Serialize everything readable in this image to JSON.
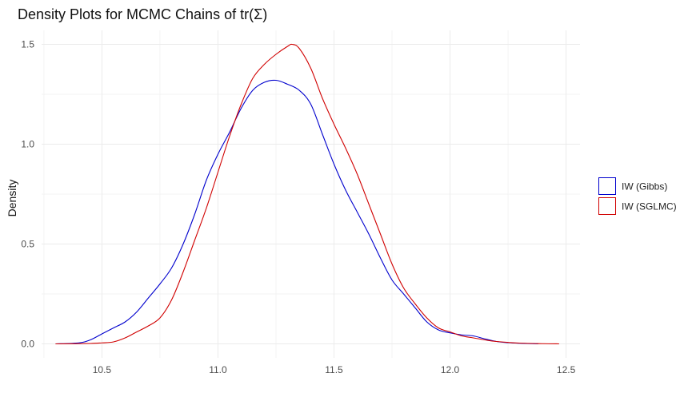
{
  "chart_data": {
    "type": "line",
    "title": "Density Plots for MCMC Chains of tr(Σ)",
    "xlabel": "",
    "ylabel": "Density",
    "xlim": [
      10.24,
      12.56
    ],
    "ylim": [
      -0.07,
      1.57
    ],
    "x_ticks": [
      "10.5",
      "11.0",
      "11.5",
      "12.0",
      "12.5"
    ],
    "x_tick_values": [
      10.5,
      11.0,
      11.5,
      12.0,
      12.5
    ],
    "y_ticks": [
      "0.0",
      "0.5",
      "1.0",
      "1.5"
    ],
    "y_tick_values": [
      0.0,
      0.5,
      1.0,
      1.5
    ],
    "grid": true,
    "legend_position": "right",
    "series": [
      {
        "name": "IW (Gibbs)",
        "color": "#0000cd",
        "x": [
          10.3,
          10.4,
          10.45,
          10.5,
          10.55,
          10.6,
          10.65,
          10.7,
          10.75,
          10.8,
          10.85,
          10.9,
          10.95,
          11.0,
          11.05,
          11.1,
          11.15,
          11.2,
          11.25,
          11.3,
          11.35,
          11.4,
          11.45,
          11.5,
          11.55,
          11.6,
          11.65,
          11.7,
          11.75,
          11.8,
          11.85,
          11.9,
          11.95,
          12.0,
          12.05,
          12.1,
          12.15,
          12.2,
          12.25,
          12.3,
          12.38
        ],
        "y": [
          0.0,
          0.005,
          0.02,
          0.05,
          0.08,
          0.11,
          0.16,
          0.23,
          0.3,
          0.38,
          0.5,
          0.65,
          0.82,
          0.95,
          1.06,
          1.18,
          1.27,
          1.31,
          1.32,
          1.3,
          1.27,
          1.2,
          1.05,
          0.9,
          0.77,
          0.66,
          0.55,
          0.43,
          0.32,
          0.25,
          0.18,
          0.11,
          0.07,
          0.055,
          0.045,
          0.04,
          0.025,
          0.012,
          0.006,
          0.003,
          0.0
        ]
      },
      {
        "name": "IW (SGLMC)",
        "color": "#d00000",
        "x": [
          10.3,
          10.45,
          10.5,
          10.55,
          10.6,
          10.65,
          10.7,
          10.75,
          10.8,
          10.85,
          10.9,
          10.95,
          11.0,
          11.05,
          11.1,
          11.15,
          11.2,
          11.25,
          11.3,
          11.32,
          11.35,
          11.4,
          11.45,
          11.5,
          11.55,
          11.6,
          11.65,
          11.7,
          11.75,
          11.8,
          11.85,
          11.9,
          11.95,
          12.0,
          12.05,
          12.1,
          12.15,
          12.2,
          12.3,
          12.4,
          12.47
        ],
        "y": [
          0.0,
          0.002,
          0.005,
          0.01,
          0.03,
          0.06,
          0.09,
          0.13,
          0.22,
          0.36,
          0.52,
          0.68,
          0.86,
          1.04,
          1.2,
          1.33,
          1.4,
          1.45,
          1.49,
          1.5,
          1.48,
          1.38,
          1.23,
          1.1,
          0.98,
          0.85,
          0.7,
          0.55,
          0.4,
          0.28,
          0.2,
          0.13,
          0.08,
          0.06,
          0.04,
          0.03,
          0.02,
          0.012,
          0.004,
          0.001,
          0.0
        ]
      }
    ]
  }
}
